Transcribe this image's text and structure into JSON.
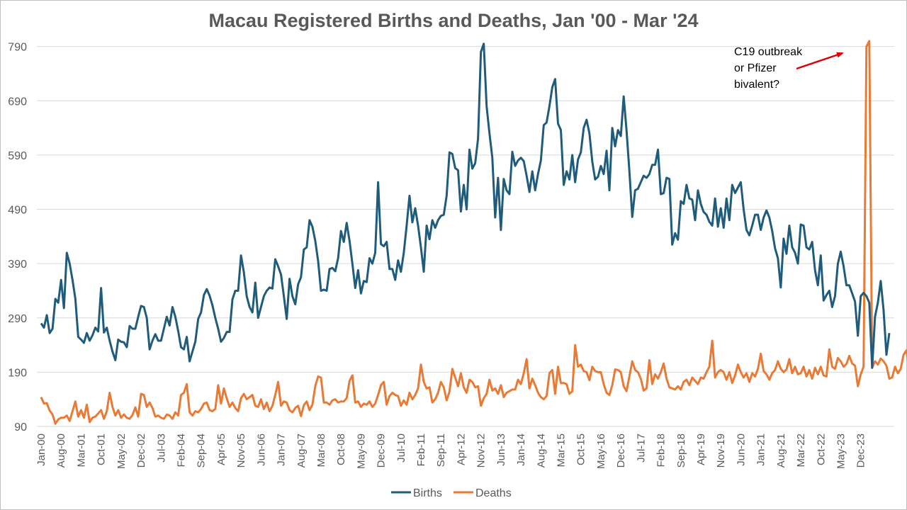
{
  "chart_data": {
    "type": "line",
    "title": "Macau Registered Births and Deaths, Jan '00 - Mar '24",
    "xlabel": "",
    "ylabel": "",
    "ylim": [
      90,
      800
    ],
    "yticks": [
      90,
      190,
      290,
      390,
      490,
      590,
      690,
      790
    ],
    "x_start": "Jan-00",
    "x_end": "Mar-24",
    "x_tick_labels": [
      "Jan-00",
      "Aug-00",
      "Mar-01",
      "Oct-01",
      "May-02",
      "Dec-02",
      "Jul-03",
      "Feb-04",
      "Sep-04",
      "Apr-05",
      "Nov-05",
      "Jun-06",
      "Jan-07",
      "Aug-07",
      "Mar-08",
      "Oct-08",
      "May-09",
      "Dec-09",
      "Jul-10",
      "Feb-11",
      "Sep-11",
      "Apr-12",
      "Nov-12",
      "Jun-13",
      "Jan-14",
      "Aug-14",
      "Mar-15",
      "Oct-15",
      "May-16",
      "Dec-16",
      "Jul-17",
      "Feb-18",
      "Sep-18",
      "Apr-19",
      "Nov-19",
      "Jun-20",
      "Jan-21",
      "Aug-21",
      "Mar-22",
      "Oct-22",
      "May-23",
      "Dec-23"
    ],
    "grid": true,
    "legend_position": "bottom",
    "series": [
      {
        "name": "Births",
        "color": "#1f5b7a",
        "values": [
          280,
          272,
          295,
          262,
          270,
          325,
          318,
          360,
          308,
          410,
          390,
          360,
          325,
          255,
          250,
          244,
          262,
          248,
          258,
          272,
          265,
          345,
          263,
          272,
          248,
          228,
          212,
          250,
          246,
          245,
          236,
          275,
          270,
          270,
          292,
          312,
          310,
          290,
          232,
          248,
          260,
          248,
          248,
          270,
          292,
          276,
          310,
          292,
          266,
          236,
          232,
          255,
          210,
          228,
          246,
          288,
          300,
          332,
          343,
          331,
          313,
          290,
          270,
          246,
          253,
          264,
          264,
          324,
          340,
          340,
          405,
          374,
          330,
          310,
          300,
          355,
          290,
          310,
          330,
          340,
          346,
          344,
          398,
          385,
          370,
          330,
          288,
          362,
          330,
          315,
          352,
          365,
          416,
          420,
          470,
          458,
          432,
          395,
          340,
          342,
          340,
          380,
          382,
          376,
          400,
          450,
          430,
          465,
          432,
          390,
          345,
          378,
          335,
          358,
          356,
          400,
          390,
          410,
          540,
          426,
          422,
          430,
          380,
          380,
          360,
          396,
          375,
          410,
          460,
          515,
          466,
          492,
          460,
          420,
          375,
          460,
          435,
          470,
          456,
          470,
          478,
          480,
          515,
          595,
          592,
          566,
          562,
          486,
          535,
          490,
          600,
          565,
          575,
          620,
          780,
          795,
          680,
          630,
          585,
          475,
          548,
          452,
          546,
          525,
          518,
          596,
          570,
          580,
          585,
          579,
          552,
          522,
          560,
          525,
          555,
          580,
          645,
          650,
          680,
          715,
          730,
          648,
          636,
          535,
          560,
          545,
          590,
          540,
          582,
          595,
          640,
          655,
          630,
          578,
          545,
          550,
          570,
          555,
          598,
          525,
          640,
          606,
          636,
          625,
          698,
          635,
          560,
          476,
          525,
          528,
          540,
          552,
          548,
          555,
          572,
          572,
          600,
          518,
          520,
          548,
          546,
          425,
          446,
          434,
          505,
          500,
          535,
          510,
          508,
          470,
          525,
          500,
          485,
          480,
          467,
          460,
          510,
          458,
          492,
          456,
          510,
          470,
          535,
          520,
          530,
          540,
          490,
          452,
          442,
          460,
          480,
          480,
          452,
          475,
          488,
          475,
          450,
          418,
          400,
          346,
          436,
          408,
          460,
          420,
          410,
          390,
          462,
          460,
          420,
          416,
          430,
          378,
          350,
          405,
          322,
          332,
          340,
          310,
          330,
          390,
          412,
          385,
          350,
          350,
          335,
          320,
          257,
          330,
          336,
          330,
          318,
          198,
          292,
          318,
          358,
          304,
          222,
          262
        ]
      },
      {
        "name": "Deaths",
        "color": "#e97a35",
        "values": [
          144,
          132,
          133,
          119,
          112,
          95,
          103,
          106,
          106,
          110,
          100,
          118,
          136,
          108,
          120,
          106,
          130,
          98,
          106,
          108,
          114,
          120,
          104,
          118,
          152,
          126,
          110,
          120,
          106,
          112,
          106,
          104,
          111,
          125,
          108,
          150,
          148,
          126,
          134,
          124,
          108,
          110,
          106,
          104,
          112,
          110,
          104,
          116,
          110,
          148,
          152,
          168,
          116,
          110,
          118,
          116,
          122,
          132,
          134,
          120,
          118,
          122,
          166,
          132,
          160,
          142,
          126,
          134,
          124,
          118,
          142,
          150,
          140,
          144,
          148,
          128,
          126,
          140,
          122,
          134,
          118,
          128,
          148,
          172,
          128,
          136,
          134,
          120,
          116,
          124,
          128,
          109,
          129,
          136,
          120,
          130,
          164,
          182,
          180,
          134,
          134,
          130,
          138,
          140,
          134,
          136,
          136,
          142,
          174,
          184,
          134,
          136,
          126,
          132,
          130,
          136,
          126,
          132,
          148,
          166,
          172,
          130,
          146,
          152,
          148,
          146,
          128,
          138,
          130,
          152,
          140,
          148,
          160,
          204,
          172,
          160,
          162,
          134,
          140,
          152,
          172,
          162,
          138,
          154,
          196,
          180,
          164,
          188,
          162,
          152,
          176,
          172,
          162,
          164,
          128,
          142,
          150,
          176,
          156,
          160,
          150,
          166,
          144,
          152,
          155,
          158,
          158,
          176,
          168,
          188,
          214,
          160,
          178,
          166,
          152,
          144,
          140,
          146,
          188,
          194,
          150,
          200,
          170,
          170,
          168,
          150,
          155,
          240,
          200,
          204,
          192,
          190,
          175,
          200,
          192,
          190,
          190,
          168,
          152,
          148,
          166,
          195,
          194,
          190,
          164,
          155,
          182,
          210,
          194,
          190,
          178,
          156,
          160,
          212,
          168,
          186,
          178,
          190,
          206,
          178,
          162,
          160,
          158,
          164,
          158,
          172,
          176,
          166,
          180,
          174,
          168,
          180,
          178,
          190,
          200,
          248,
          180,
          190,
          194,
          190,
          176,
          190,
          170,
          184,
          204,
          190,
          180,
          188,
          172,
          188,
          182,
          196,
          224,
          192,
          186,
          176,
          188,
          194,
          210,
          196,
          190,
          195,
          214,
          188,
          200,
          186,
          188,
          200,
          182,
          194,
          178,
          198,
          186,
          200,
          184,
          182,
          232,
          200,
          196,
          216,
          210,
          200,
          205,
          220,
          206,
          202,
          164,
          186,
          200,
          790,
          805,
          198,
          210,
          204,
          215,
          210,
          202,
          178,
          180,
          200,
          188,
          196,
          222,
          230,
          196,
          214
        ]
      }
    ],
    "annotation": {
      "lines": [
        "C19 outbreak",
        "or Pfizer",
        "bivalent?"
      ],
      "arrow_color": "#e00000"
    }
  }
}
